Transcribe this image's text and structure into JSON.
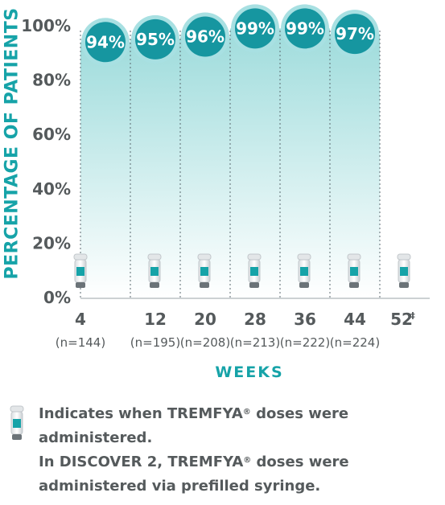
{
  "chart_data": {
    "type": "bar",
    "ylabel": "PERCENTAGE OF PATIENTS",
    "xlabel": "WEEKS",
    "ylim": [
      0,
      100
    ],
    "yticks": [
      "0%",
      "20%",
      "40%",
      "60%",
      "80%",
      "100%"
    ],
    "categories": [
      "4",
      "12",
      "20",
      "28",
      "36",
      "44"
    ],
    "sample_sizes": [
      "(n=144)",
      "(n=195)",
      "(n=208)",
      "(n=213)",
      "(n=222)",
      "(n=224)"
    ],
    "values": [
      94,
      95,
      96,
      99,
      99,
      97
    ],
    "value_labels": [
      "94%",
      "95%",
      "96%",
      "99%",
      "99%",
      "97%"
    ],
    "extra_category": "52",
    "extra_category_mark": "‡",
    "dose_weeks": [
      "4",
      "12",
      "20",
      "28",
      "36",
      "44",
      "52"
    ],
    "colors": {
      "bar_top": "#9fdcdc",
      "bar_bottom": "#ffffff",
      "bubble": "#1696a0",
      "accent": "#16a3a8",
      "text": "#555a5c"
    }
  },
  "legend": {
    "line1_pre": "Indicates when TREMFYA",
    "line1_post": " doses were",
    "line2": "administered.",
    "line3_pre": "In DISCOVER 2, TREMFYA",
    "line3_post": " doses were",
    "line4": "administered via prefilled syringe.",
    "reg": "®"
  }
}
